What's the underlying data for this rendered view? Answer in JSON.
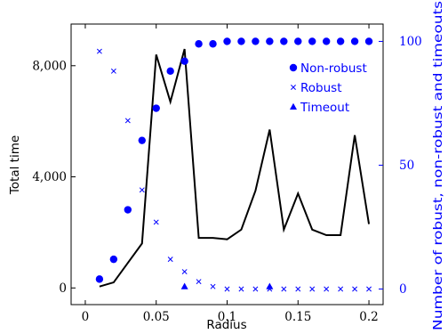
{
  "chart_data": {
    "type": "line",
    "x": [
      0.01,
      0.02,
      0.03,
      0.04,
      0.05,
      0.06,
      0.07,
      0.08,
      0.09,
      0.1,
      0.11,
      0.12,
      0.13,
      0.14,
      0.15,
      0.16,
      0.17,
      0.18,
      0.19,
      0.2
    ],
    "xlabel": "Radius",
    "xlim": [
      -0.01,
      0.21
    ],
    "x_ticks": [
      0,
      0.05,
      0.1,
      0.15,
      0.2
    ],
    "x_tick_labels": [
      "0",
      "0.05",
      "0.1",
      "0.15",
      "0.2"
    ],
    "ylabel_left": "Total time",
    "ylim_left": [
      -600,
      9500
    ],
    "y_left_ticks": [
      0,
      4000,
      8000
    ],
    "y_left_tick_labels": [
      "0",
      "4,000",
      "8,000"
    ],
    "ylabel_right": "Number of robust, non-robust and timeouts",
    "ylim_right": [
      -6.3,
      107
    ],
    "y_right_ticks": [
      0,
      50,
      100
    ],
    "y_right_tick_labels": [
      "0",
      "50",
      "100"
    ],
    "total_time": {
      "axis": "left",
      "color": "#000000",
      "values": [
        50,
        200,
        900,
        1600,
        8400,
        6700,
        8600,
        1800,
        1800,
        1750,
        2100,
        3500,
        5700,
        2100,
        3400,
        2100,
        1900,
        1900,
        5500,
        2300
      ]
    },
    "series": [
      {
        "name": "Non-robust",
        "axis": "right",
        "marker": "circle",
        "color": "#0000ff",
        "values": [
          4,
          12,
          32,
          60,
          73,
          88,
          92,
          99,
          99,
          100,
          100,
          100,
          100,
          100,
          100,
          100,
          100,
          100,
          100,
          100
        ]
      },
      {
        "name": "Robust",
        "axis": "right",
        "marker": "x",
        "color": "#0000ff",
        "values": [
          96,
          88,
          68,
          40,
          27,
          12,
          7,
          3,
          1,
          0,
          0,
          0,
          0,
          0,
          0,
          0,
          0,
          0,
          0,
          0
        ]
      },
      {
        "name": "Timeout",
        "axis": "right",
        "marker": "triangle",
        "color": "#0000ff",
        "points": [
          [
            0.07,
            1
          ],
          [
            0.13,
            1
          ]
        ]
      }
    ],
    "legend_position": "top-right",
    "grid": false
  }
}
